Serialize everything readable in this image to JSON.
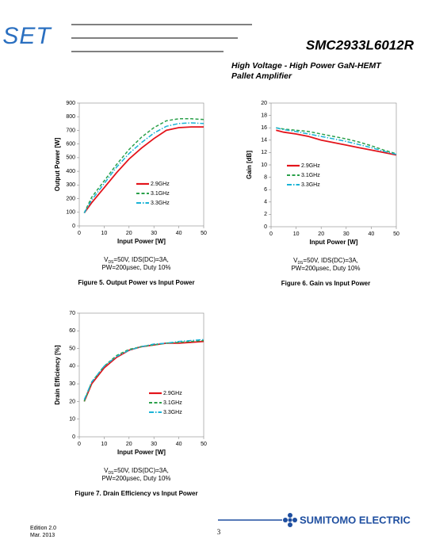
{
  "header": {
    "logo": "SET",
    "part_number": "SMC2933L6012R",
    "subtitle_lines": [
      "High Voltage  - High Power GaN-HEMT",
      "Pallet Amplifier"
    ]
  },
  "chart_data": [
    {
      "type": "line",
      "title": "Figure 5. Output Power vs Input Power",
      "x_label": "Input Power [W]",
      "y_label": "Output Power  [W]",
      "note": {
        "line1": [
          "V",
          "DS",
          "=50V, IDS(DC)=3A,"
        ],
        "line2": "PW=200µsec, Duty 10%"
      },
      "x": [
        2,
        5,
        10,
        15,
        20,
        25,
        30,
        35,
        40,
        45,
        50
      ],
      "series": [
        {
          "name": "2.9GHz",
          "color": "#e3141b",
          "dash": "solid",
          "values": [
            95,
            170,
            280,
            390,
            490,
            570,
            640,
            700,
            720,
            725,
            725
          ]
        },
        {
          "name": "3.1GHz",
          "color": "#2aa04a",
          "dash": "dashed",
          "values": [
            95,
            210,
            330,
            450,
            560,
            650,
            720,
            770,
            785,
            785,
            780
          ]
        },
        {
          "name": "3.3GHz",
          "color": "#1ab3d6",
          "dash": "dashdot",
          "values": [
            95,
            190,
            310,
            430,
            530,
            610,
            680,
            730,
            750,
            755,
            750
          ]
        }
      ],
      "xlim": [
        0,
        50
      ],
      "xticks": [
        0,
        10,
        20,
        30,
        40,
        50
      ],
      "ylim": [
        0,
        900
      ],
      "yticks": [
        0,
        100,
        200,
        300,
        400,
        500,
        600,
        700,
        800,
        900
      ]
    },
    {
      "type": "line",
      "title": "Figure 6. Gain vs Input Power",
      "x_label": "Input Power [W]",
      "y_label": "Gain  [dB]",
      "note": {
        "line1": [
          "V",
          "DS",
          "=50V, IDS(DC)=3A,"
        ],
        "line2": "PW=200µsec, Duty 10%"
      },
      "x": [
        2,
        5,
        10,
        15,
        20,
        25,
        30,
        35,
        40,
        45,
        50
      ],
      "series": [
        {
          "name": "2.9GHz",
          "color": "#e3141b",
          "dash": "solid",
          "values": [
            15.6,
            15.3,
            15.0,
            14.6,
            14.0,
            13.6,
            13.2,
            12.8,
            12.4,
            12.0,
            11.6
          ]
        },
        {
          "name": "3.1GHz",
          "color": "#2aa04a",
          "dash": "dashed",
          "values": [
            16.0,
            15.8,
            15.6,
            15.4,
            15.0,
            14.6,
            14.2,
            13.7,
            13.1,
            12.4,
            11.8
          ]
        },
        {
          "name": "3.3GHz",
          "color": "#1ab3d6",
          "dash": "dashdot",
          "values": [
            16.0,
            15.7,
            15.4,
            15.0,
            14.6,
            14.2,
            13.8,
            13.3,
            12.8,
            12.2,
            11.7
          ]
        }
      ],
      "xlim": [
        0,
        50
      ],
      "xticks": [
        0,
        10,
        20,
        30,
        40,
        50
      ],
      "ylim": [
        0,
        20
      ],
      "yticks": [
        0,
        2,
        4,
        6,
        8,
        10,
        12,
        14,
        16,
        18,
        20
      ]
    },
    {
      "type": "line",
      "title": "Figure 7. Drain Efficiency vs Input Power",
      "x_label": "Input Power [W]",
      "y_label": "Drain Efficiency  [%]",
      "note": {
        "line1": [
          "V",
          "DS",
          "=50V, IDS(DC)=3A,"
        ],
        "line2": "PW=200µsec, Duty 10%"
      },
      "x": [
        2,
        5,
        10,
        15,
        20,
        25,
        30,
        35,
        40,
        45,
        50
      ],
      "series": [
        {
          "name": "2.9GHz",
          "color": "#e3141b",
          "dash": "solid",
          "values": [
            20,
            30,
            39,
            45,
            49,
            51,
            52,
            53,
            53,
            53.5,
            54
          ]
        },
        {
          "name": "3.1GHz",
          "color": "#2aa04a",
          "dash": "dashed",
          "values": [
            20,
            31,
            40,
            46,
            49.5,
            51,
            52,
            53,
            53.5,
            54,
            54.5
          ]
        },
        {
          "name": "3.3GHz",
          "color": "#1ab3d6",
          "dash": "dashdot",
          "values": [
            21,
            31,
            40,
            45.5,
            49,
            51,
            52.5,
            53,
            54,
            54.5,
            55
          ]
        }
      ],
      "xlim": [
        0,
        50
      ],
      "xticks": [
        0,
        10,
        20,
        30,
        40,
        50
      ],
      "ylim": [
        0,
        70
      ],
      "yticks": [
        0,
        10,
        20,
        30,
        40,
        50,
        60,
        70
      ]
    }
  ],
  "footer": {
    "edition": "Edition 2.0",
    "date": "Mar. 2013",
    "page": "3",
    "brand": "SUMITOMO ELECTRIC"
  }
}
